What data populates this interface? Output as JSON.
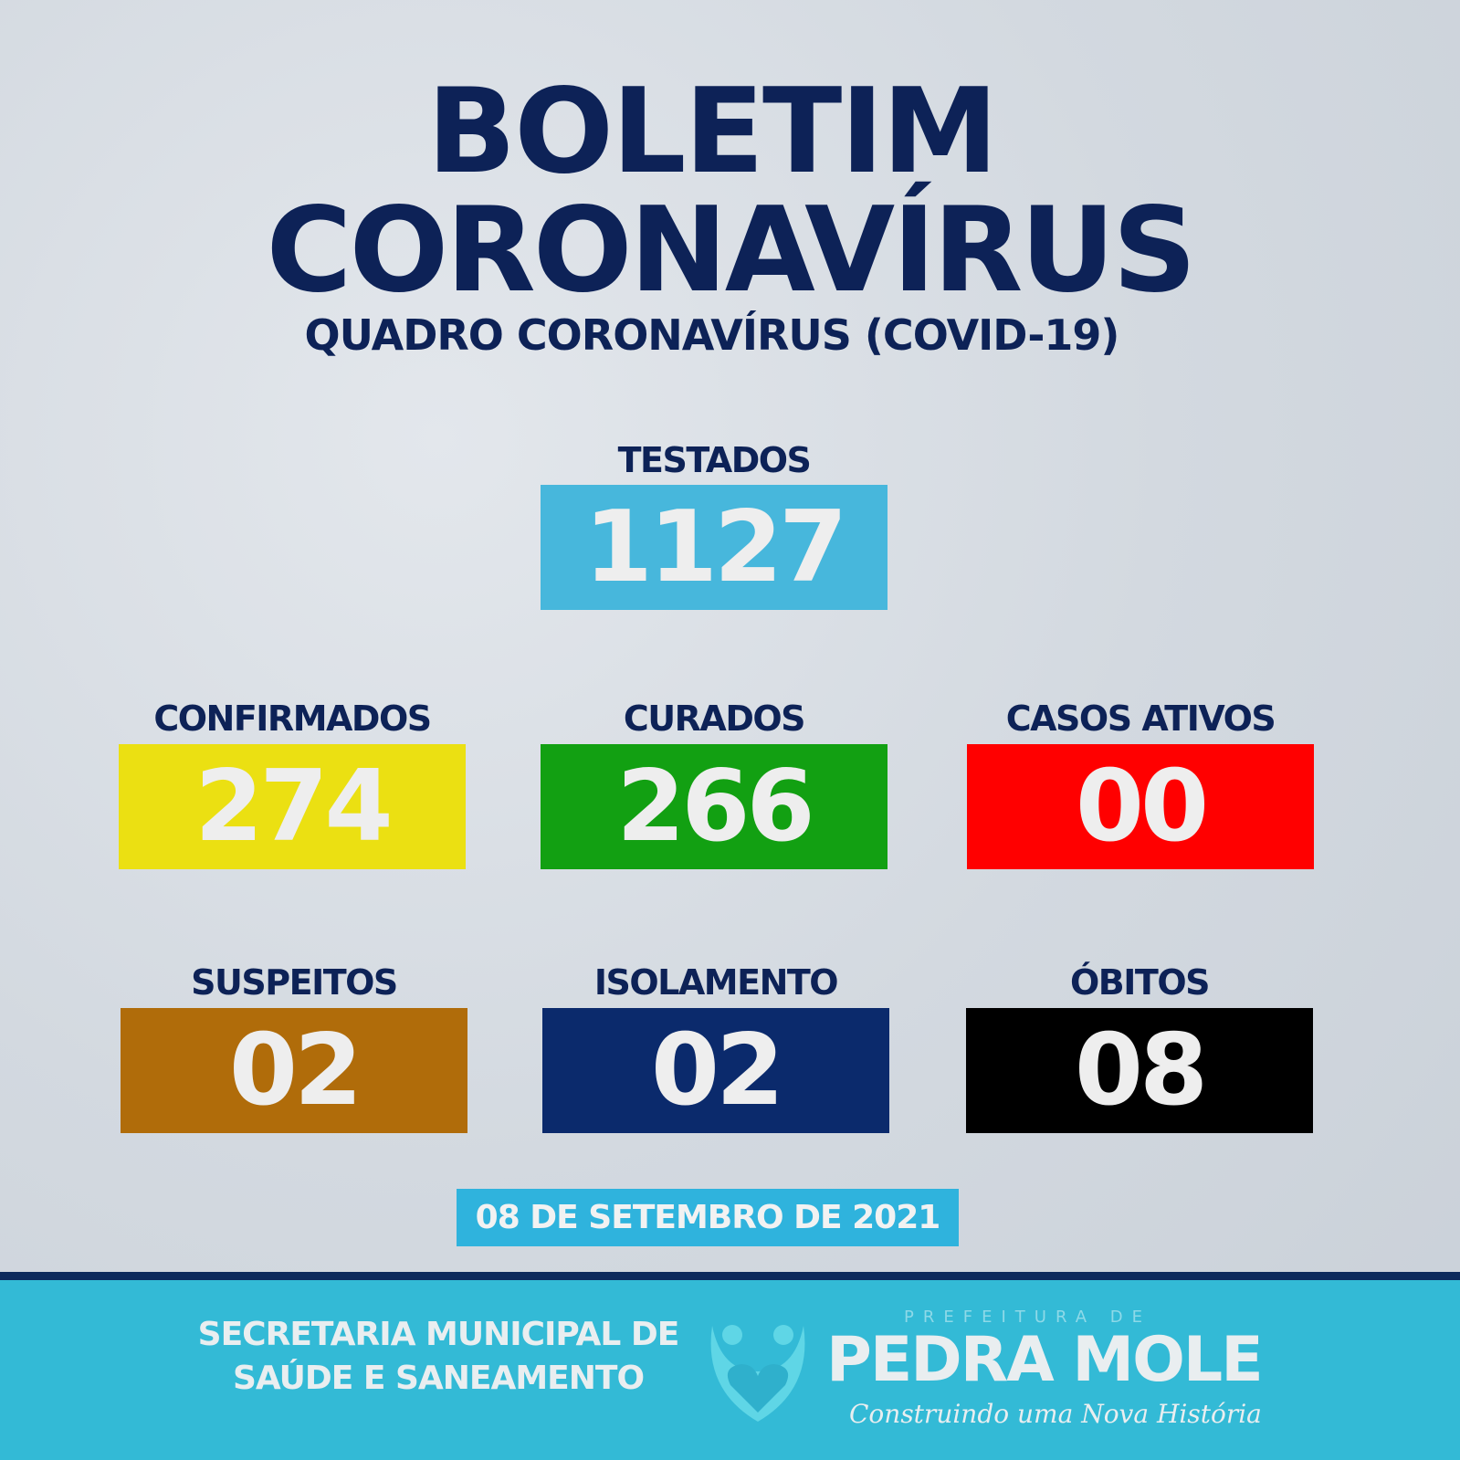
{
  "header": {
    "title_line1": "BOLETIM",
    "title_line2": "CORONAVÍRUS",
    "subtitle": "QUADRO CORONAVÍRUS (COVID-19)"
  },
  "stats": [
    {
      "label": "TESTADOS",
      "value": "1127",
      "color": "#47b7dc"
    },
    {
      "label": "CONFIRMADOS",
      "value": "274",
      "color": "#ebe012"
    },
    {
      "label": "CURADOS",
      "value": "266",
      "color": "#12a012"
    },
    {
      "label": "CASOS ATIVOS",
      "value": "00",
      "color": "#ff0000"
    },
    {
      "label": "SUSPEITOS",
      "value": "02",
      "color": "#b06c0a"
    },
    {
      "label": "ISOLAMENTO",
      "value": "02",
      "color": "#0b2a6c"
    },
    {
      "label": "ÓBITOS",
      "value": "08",
      "color": "#000000"
    }
  ],
  "date": "08 DE SETEMBRO DE 2021",
  "footer": {
    "secretaria_line1": "SECRETARIA MUNICIPAL DE",
    "secretaria_line2": "SAÚDE E SANEAMENTO",
    "logo": {
      "prefix": "PREFEITURA DE",
      "name": "PEDRA MOLE",
      "slogan": "Construindo uma Nova História",
      "icon": "heart-people-icon"
    }
  }
}
